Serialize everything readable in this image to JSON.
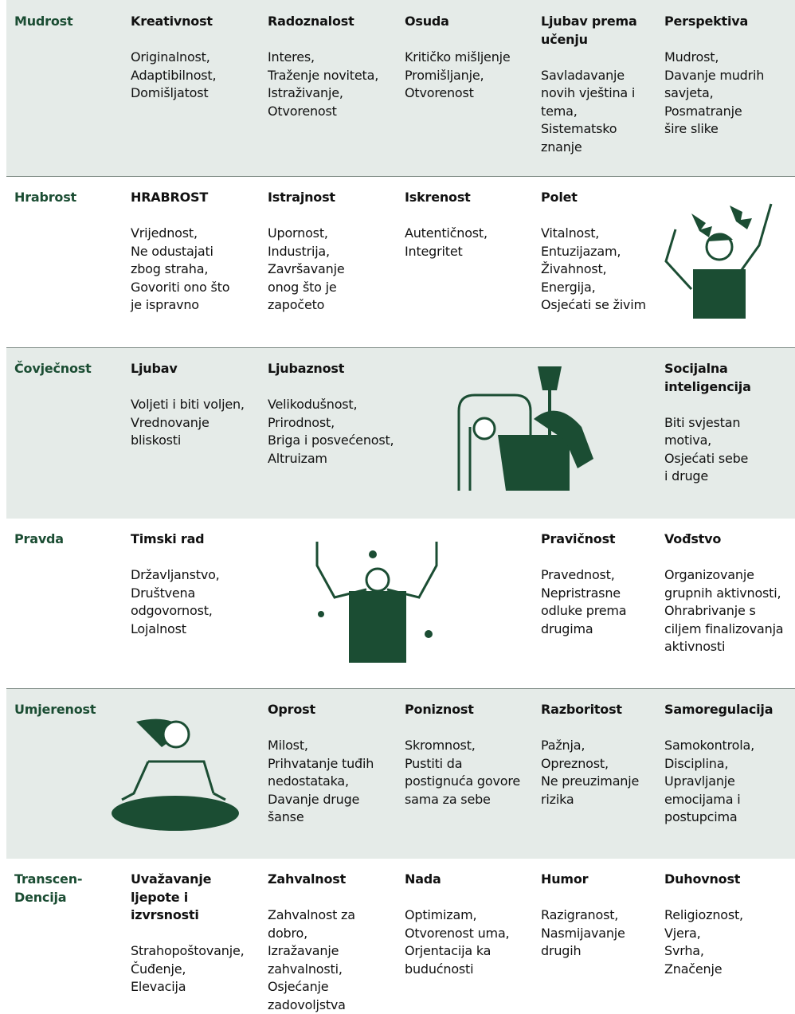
{
  "rows": [
    {
      "category": [
        "Mudrost"
      ],
      "cells": [
        {
          "title": [
            "Kreativnost"
          ],
          "lines": [
            "Originalnost,",
            "Adaptibilnost,",
            "Domišljatost"
          ]
        },
        {
          "title": [
            "Radoznalost"
          ],
          "lines": [
            "Interes,",
            "Traženje noviteta,",
            "Istraživanje,",
            "Otvorenost"
          ]
        },
        {
          "title": [
            "Osuda"
          ],
          "lines": [
            "Kritičko mišljenje",
            "Promišljanje,",
            "Otvorenost"
          ]
        },
        {
          "title": [
            "Ljubav prema",
            "učenju"
          ],
          "lines": [
            "Savladavanje",
            "novih vještina i",
            "tema,",
            "Sistematsko",
            "znanje"
          ]
        },
        {
          "title": [
            "Perspektiva"
          ],
          "lines": [
            "Mudrost,",
            "Davanje mudrih",
            "savjeta,",
            "Posmatranje",
            "šire slike"
          ]
        }
      ]
    },
    {
      "category": [
        "Hrabrost"
      ],
      "cells": [
        {
          "title": [
            "HRABROST"
          ],
          "lines": [
            "Vrijednost,",
            "Ne odustajati",
            "zbog straha,",
            "Govoriti ono što",
            "je ispravno"
          ]
        },
        {
          "title": [
            "Istrajnost"
          ],
          "lines": [
            "Upornost,",
            "Industrija,",
            "Završavanje",
            "onog što je",
            "započeto"
          ]
        },
        {
          "title": [
            "Iskrenost"
          ],
          "lines": [
            "Autentičnost,",
            "Integritet"
          ]
        },
        {
          "title": [
            "Polet"
          ],
          "lines": [
            "Vitalnost,",
            "Entuzijazam,",
            "Živahnost,",
            "Energija,",
            "Osjećati se živim"
          ]
        },
        null
      ]
    },
    {
      "category": [
        "Čovječnost"
      ],
      "cells": [
        {
          "title": [
            "Ljubav"
          ],
          "lines": [
            "Voljeti i biti voljen,",
            "Vrednovanje",
            "bliskosti"
          ]
        },
        {
          "title": [
            "Ljubaznost"
          ],
          "lines": [
            "Velikodušnost,",
            "Prirodnost,",
            "Briga i posvećenost,",
            "Altruizam"
          ]
        },
        null,
        null,
        {
          "title": [
            "Socijalna",
            "inteligencija"
          ],
          "lines": [
            "Biti svjestan",
            "motiva,",
            "Osjećati sebe",
            "i druge"
          ]
        }
      ]
    },
    {
      "category": [
        "Pravda"
      ],
      "cells": [
        {
          "title": [
            "Timski rad"
          ],
          "lines": [
            "Državljanstvo,",
            "Društvena",
            "odgovornost,",
            "Lojalnost"
          ]
        },
        null,
        null,
        {
          "title": [
            "Pravičnost"
          ],
          "lines": [
            "Pravednost,",
            "Nepristrasne",
            "odluke prema",
            "drugima"
          ]
        },
        {
          "title": [
            "Vođstvo"
          ],
          "lines": [
            "Organizovanje",
            "grupnih aktivnosti,",
            "Ohrabrivanje s",
            "ciljem finalizovanja",
            "aktivnosti"
          ]
        }
      ]
    },
    {
      "category": [
        "Umjerenost"
      ],
      "cells": [
        null,
        {
          "title": [
            "Oprost"
          ],
          "lines": [
            "Milost,",
            "Prihvatanje tuđih",
            "nedostataka,",
            "Davanje druge",
            "šanse"
          ]
        },
        {
          "title": [
            "Poniznost"
          ],
          "lines": [
            "Skromnost,",
            "Pustiti da",
            "postignuća govore",
            "sama za sebe"
          ]
        },
        {
          "title": [
            "Razboritost"
          ],
          "lines": [
            "Pažnja,",
            "Opreznost,",
            "Ne preuzimanje",
            "rizika"
          ]
        },
        {
          "title": [
            "Samoregulacija"
          ],
          "lines": [
            "Samokontrola,",
            "Disciplina,",
            "Upravljanje",
            "emocijama i",
            "postupcima"
          ]
        }
      ]
    },
    {
      "category": [
        "Transcen-",
        "Dencija"
      ],
      "cells": [
        {
          "title": [
            "Uvažavanje",
            "ljepote i",
            "izvrsnosti"
          ],
          "lines": [
            "Strahopoštovanje,",
            "Čuđenje,",
            "Elevacija"
          ]
        },
        {
          "title": [
            "Zahvalnost"
          ],
          "lines": [
            "Zahvalnost za",
            "dobro,",
            "Izražavanje",
            "zahvalnosti,",
            "Osjećanje",
            "zadovoljstva"
          ]
        },
        {
          "title": [
            "Nada"
          ],
          "lines": [
            "Optimizam,",
            "Otvorenost uma,",
            "Orjentacija ka",
            "budućnosti"
          ]
        },
        {
          "title": [
            "Humor"
          ],
          "lines": [
            "Razigranost,",
            "Nasmijavanje",
            "drugih"
          ]
        },
        {
          "title": [
            "Duhovnost"
          ],
          "lines": [
            "Religioznost,",
            "Vjera,",
            "Svrha,",
            "Značenje"
          ]
        }
      ]
    }
  ]
}
